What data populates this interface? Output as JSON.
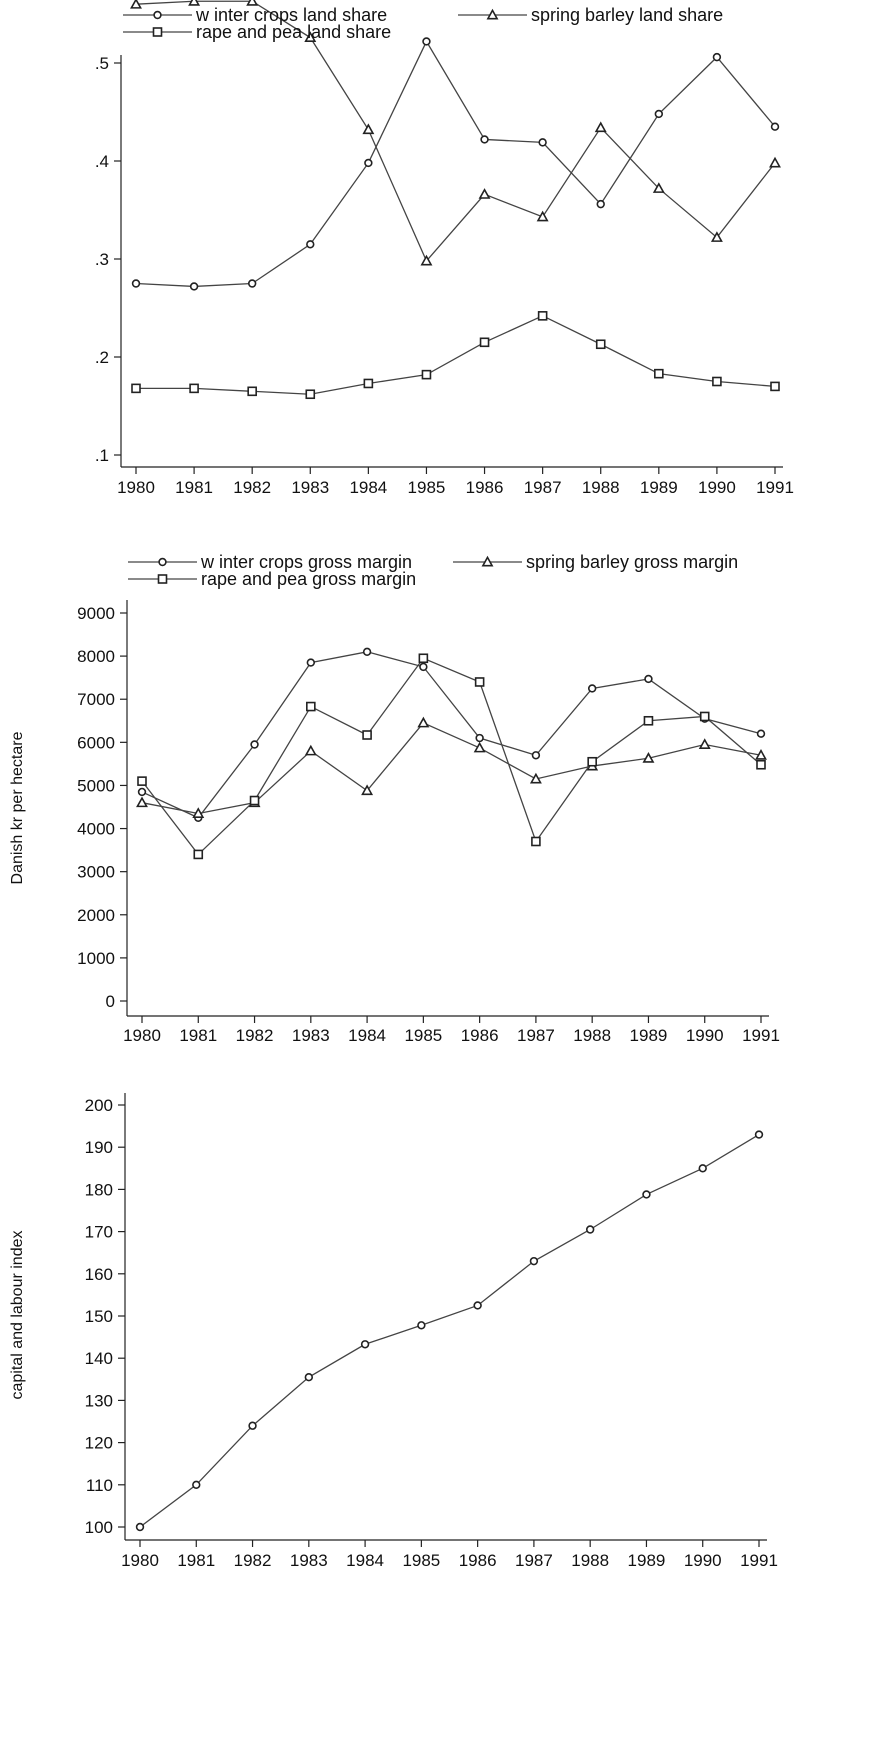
{
  "chart_data": [
    {
      "type": "line",
      "x": [
        1980,
        1981,
        1982,
        1983,
        1984,
        1985,
        1986,
        1987,
        1988,
        1989,
        1990,
        1991
      ],
      "ylim": [
        0.1,
        0.56
      ],
      "yticks": [
        0.1,
        0.2,
        0.3,
        0.4,
        0.5
      ],
      "ytick_labels": [
        ".1",
        ".2",
        ".3",
        ".4",
        ".5"
      ],
      "ylabel": "",
      "xlabel": "",
      "legend_position": "top",
      "series": [
        {
          "name": "w inter crops land share",
          "marker": "circle",
          "values": [
            0.275,
            0.272,
            0.275,
            0.315,
            0.398,
            0.522,
            0.422,
            0.419,
            0.356,
            0.448,
            0.506,
            0.435
          ]
        },
        {
          "name": "spring barley land share",
          "marker": "triangle",
          "values": [
            0.56,
            0.563,
            0.563,
            0.526,
            0.432,
            0.298,
            0.366,
            0.343,
            0.434,
            0.372,
            0.322,
            0.398
          ]
        },
        {
          "name": "rape and pea land share",
          "marker": "square",
          "values": [
            0.168,
            0.168,
            0.165,
            0.162,
            0.173,
            0.182,
            0.215,
            0.242,
            0.213,
            0.183,
            0.175,
            0.17
          ]
        }
      ]
    },
    {
      "type": "line",
      "x": [
        1980,
        1981,
        1982,
        1983,
        1984,
        1985,
        1986,
        1987,
        1988,
        1989,
        1990,
        1991
      ],
      "ylim": [
        0,
        9000
      ],
      "yticks": [
        0,
        1000,
        2000,
        3000,
        4000,
        5000,
        6000,
        7000,
        8000,
        9000
      ],
      "ytick_labels": [
        "0",
        "1000",
        "2000",
        "3000",
        "4000",
        "5000",
        "6000",
        "7000",
        "8000",
        "9000"
      ],
      "ylabel": "Danish kr per hectare",
      "xlabel": "",
      "legend_position": "top",
      "series": [
        {
          "name": "w inter crops gross margin",
          "marker": "circle",
          "values": [
            4850,
            4250,
            5950,
            7850,
            8100,
            7750,
            6100,
            5700,
            7250,
            7470,
            6550,
            6200
          ]
        },
        {
          "name": "spring barley gross margin",
          "marker": "triangle",
          "values": [
            4600,
            4350,
            4600,
            5800,
            4880,
            6450,
            5870,
            5150,
            5450,
            5630,
            5950,
            5700
          ]
        },
        {
          "name": "rape and pea gross margin",
          "marker": "square",
          "values": [
            5100,
            3400,
            4650,
            6830,
            6170,
            7950,
            7400,
            3700,
            5550,
            6500,
            6600,
            5480
          ]
        }
      ]
    },
    {
      "type": "line",
      "x": [
        1980,
        1981,
        1982,
        1983,
        1984,
        1985,
        1986,
        1987,
        1988,
        1989,
        1990,
        1991
      ],
      "ylim": [
        100,
        200
      ],
      "yticks": [
        100,
        110,
        120,
        130,
        140,
        150,
        160,
        170,
        180,
        190,
        200
      ],
      "ytick_labels": [
        "100",
        "110",
        "120",
        "130",
        "140",
        "150",
        "160",
        "170",
        "180",
        "190",
        "200"
      ],
      "ylabel": "capital and labour index",
      "xlabel": "",
      "series": [
        {
          "name": "",
          "marker": "circle",
          "values": [
            100,
            110,
            124,
            135.5,
            143.3,
            147.8,
            152.5,
            163,
            170.5,
            178.8,
            185,
            193
          ]
        }
      ]
    }
  ]
}
